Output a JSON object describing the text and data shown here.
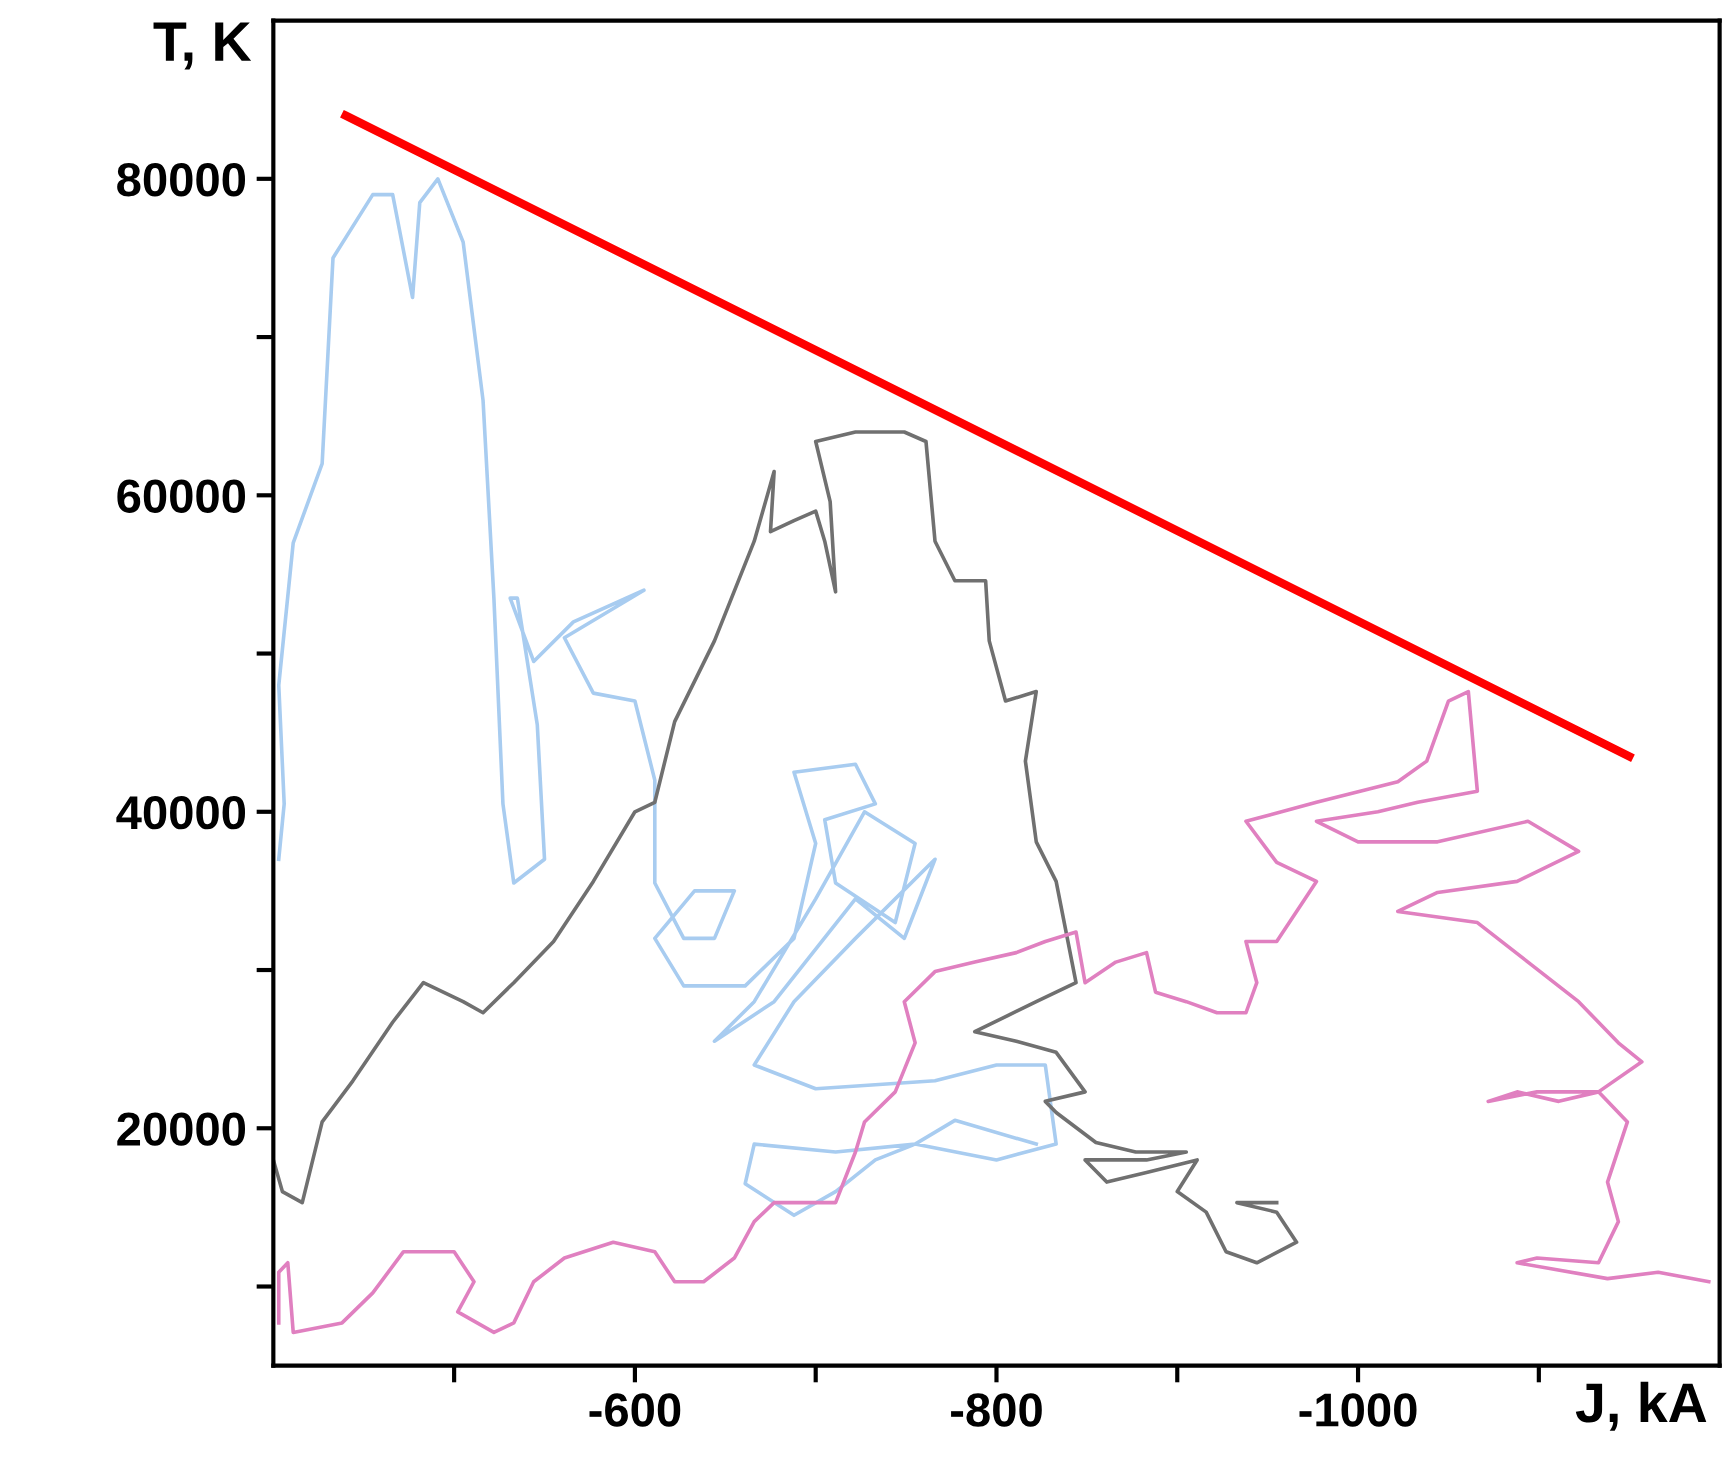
{
  "chart_data": {
    "type": "line",
    "xlabel": "J, kA",
    "ylabel": "T, K",
    "xlim": [
      -400,
      -1200
    ],
    "ylim": [
      5000,
      90000
    ],
    "xticks": [
      {
        "value": -500,
        "label": null
      },
      -600,
      {
        "value": -700,
        "label": null
      },
      -800,
      {
        "value": -900,
        "label": null
      },
      -1000,
      {
        "value": -1100,
        "label": null
      }
    ],
    "yticks": [
      {
        "value": 10000,
        "label": null
      },
      20000,
      {
        "value": 30000,
        "label": null
      },
      40000,
      {
        "value": 50000,
        "label": null
      },
      60000,
      {
        "value": 70000,
        "label": null
      },
      80000
    ],
    "grid": false,
    "legend": false,
    "marker": "none",
    "line_style": "solid",
    "series": [
      {
        "color": "#a8ccf0",
        "x": [
          -403,
          -406,
          -403,
          -411,
          -427,
          -433,
          -455,
          -466,
          -477,
          -481,
          -491,
          -505,
          -516,
          -522,
          -527,
          -533,
          -550,
          -546,
          -535,
          -531,
          -544,
          -566,
          -605,
          -561,
          -577,
          -600,
          -611,
          -611,
          -627,
          -644,
          -655,
          -633,
          -611,
          -627,
          -661,
          -688,
          -700,
          -688,
          -722,
          -733,
          -705,
          -711,
          -744,
          -755,
          -727,
          -700,
          -666,
          -644,
          -677,
          -722,
          -749,
          -766,
          -722,
          -688,
          -666,
          -700,
          -766,
          -800,
          -827,
          -833,
          -800,
          -755,
          -711,
          -666,
          -661,
          -688,
          -711,
          -733,
          -755,
          -777,
          -822
        ],
        "values": [
          37000,
          40500,
          48000,
          57000,
          62000,
          75000,
          79000,
          79000,
          72500,
          78500,
          80000,
          76000,
          66000,
          53500,
          40500,
          35500,
          37000,
          45500,
          53500,
          53500,
          49500,
          52000,
          54000,
          51000,
          47500,
          47000,
          42000,
          35500,
          32000,
          32000,
          35000,
          35000,
          32000,
          29000,
          29000,
          32000,
          38000,
          42500,
          43000,
          40500,
          39500,
          35500,
          33000,
          38000,
          40000,
          34500,
          28000,
          25500,
          28000,
          34500,
          32000,
          37000,
          32000,
          28000,
          24000,
          22500,
          23000,
          24000,
          24000,
          19000,
          18000,
          19000,
          18500,
          19000,
          16500,
          14500,
          16000,
          18000,
          19000,
          20500,
          19000
        ]
      },
      {
        "color": "#707070",
        "x": [
          -400,
          -405,
          -416,
          -427,
          -444,
          -466,
          -483,
          -505,
          -516,
          -533,
          -555,
          -577,
          -600,
          -611,
          -622,
          -644,
          -666,
          -677,
          -675,
          -688,
          -700,
          -705,
          -711,
          -708,
          -700,
          -722,
          -749,
          -761,
          -766,
          -777,
          -794,
          -796,
          -805,
          -822,
          -816,
          -822,
          -833,
          -844,
          -822,
          -788,
          -811,
          -833,
          -849,
          -827,
          -833,
          -855,
          -877,
          -905,
          -883,
          -849,
          -861,
          -883,
          -911,
          -900,
          -916,
          -927,
          -944,
          -966,
          -955,
          -933,
          -955
        ],
        "values": [
          18000,
          16000,
          15300,
          20400,
          23000,
          26700,
          29200,
          28000,
          27300,
          29200,
          31800,
          35600,
          40000,
          40600,
          45700,
          50800,
          57100,
          61500,
          57700,
          58400,
          59000,
          57100,
          53900,
          59600,
          63400,
          64000,
          64000,
          63400,
          57100,
          54600,
          54600,
          50800,
          47000,
          47600,
          43200,
          38100,
          35600,
          29200,
          28000,
          26100,
          25500,
          24800,
          22300,
          21700,
          21000,
          19100,
          18500,
          18500,
          18000,
          18000,
          16600,
          17200,
          18000,
          16000,
          14700,
          12200,
          11500,
          12800,
          14700,
          15300,
          15300
        ]
      },
      {
        "color": "#e080c0",
        "x": [
          -403,
          -403,
          -408,
          -411,
          -438,
          -455,
          -472,
          -500,
          -511,
          -502,
          -522,
          -533,
          -544,
          -561,
          -588,
          -611,
          -622,
          -638,
          -655,
          -666,
          -677,
          -711,
          -722,
          -727,
          -744,
          -755,
          -749,
          -766,
          -788,
          -811,
          -827,
          -844,
          -849,
          -866,
          -883,
          -888,
          -905,
          -922,
          -938,
          -944,
          -938,
          -955,
          -977,
          -955,
          -938,
          -977,
          -1022,
          -1038,
          -1050,
          -1061,
          -1066,
          -1033,
          -1011,
          -977,
          -1000,
          -1044,
          -1094,
          -1122,
          -1088,
          -1044,
          -1022,
          -1066,
          -1094,
          -1122,
          -1144,
          -1157,
          -1133,
          -1111,
          -1088,
          -1072,
          -1099,
          -1133,
          -1149,
          -1138,
          -1144,
          -1133,
          -1099,
          -1088,
          -1138,
          -1166,
          -1194
        ],
        "values": [
          7700,
          10900,
          11500,
          7100,
          7700,
          9600,
          12200,
          12200,
          10300,
          8400,
          7100,
          7700,
          10300,
          11800,
          12800,
          12200,
          10300,
          10300,
          11800,
          14100,
          15300,
          15300,
          18500,
          20400,
          22300,
          25400,
          28000,
          29900,
          30500,
          31100,
          31800,
          32400,
          29200,
          30500,
          31100,
          28600,
          28000,
          27300,
          27300,
          29200,
          31800,
          31800,
          35600,
          36800,
          39400,
          40600,
          41900,
          43200,
          47000,
          47600,
          41300,
          40600,
          40000,
          39400,
          38100,
          38100,
          39400,
          37500,
          35600,
          34900,
          33700,
          33000,
          30500,
          28000,
          25400,
          24200,
          22300,
          21700,
          22300,
          21700,
          22300,
          22300,
          20400,
          16600,
          14100,
          11500,
          11800,
          11500,
          10500,
          10900,
          10300
        ]
      },
      {
        "color": "#ff0000",
        "x": [
          -440,
          -1150
        ],
        "values": [
          84000,
          43500
        ]
      }
    ]
  }
}
